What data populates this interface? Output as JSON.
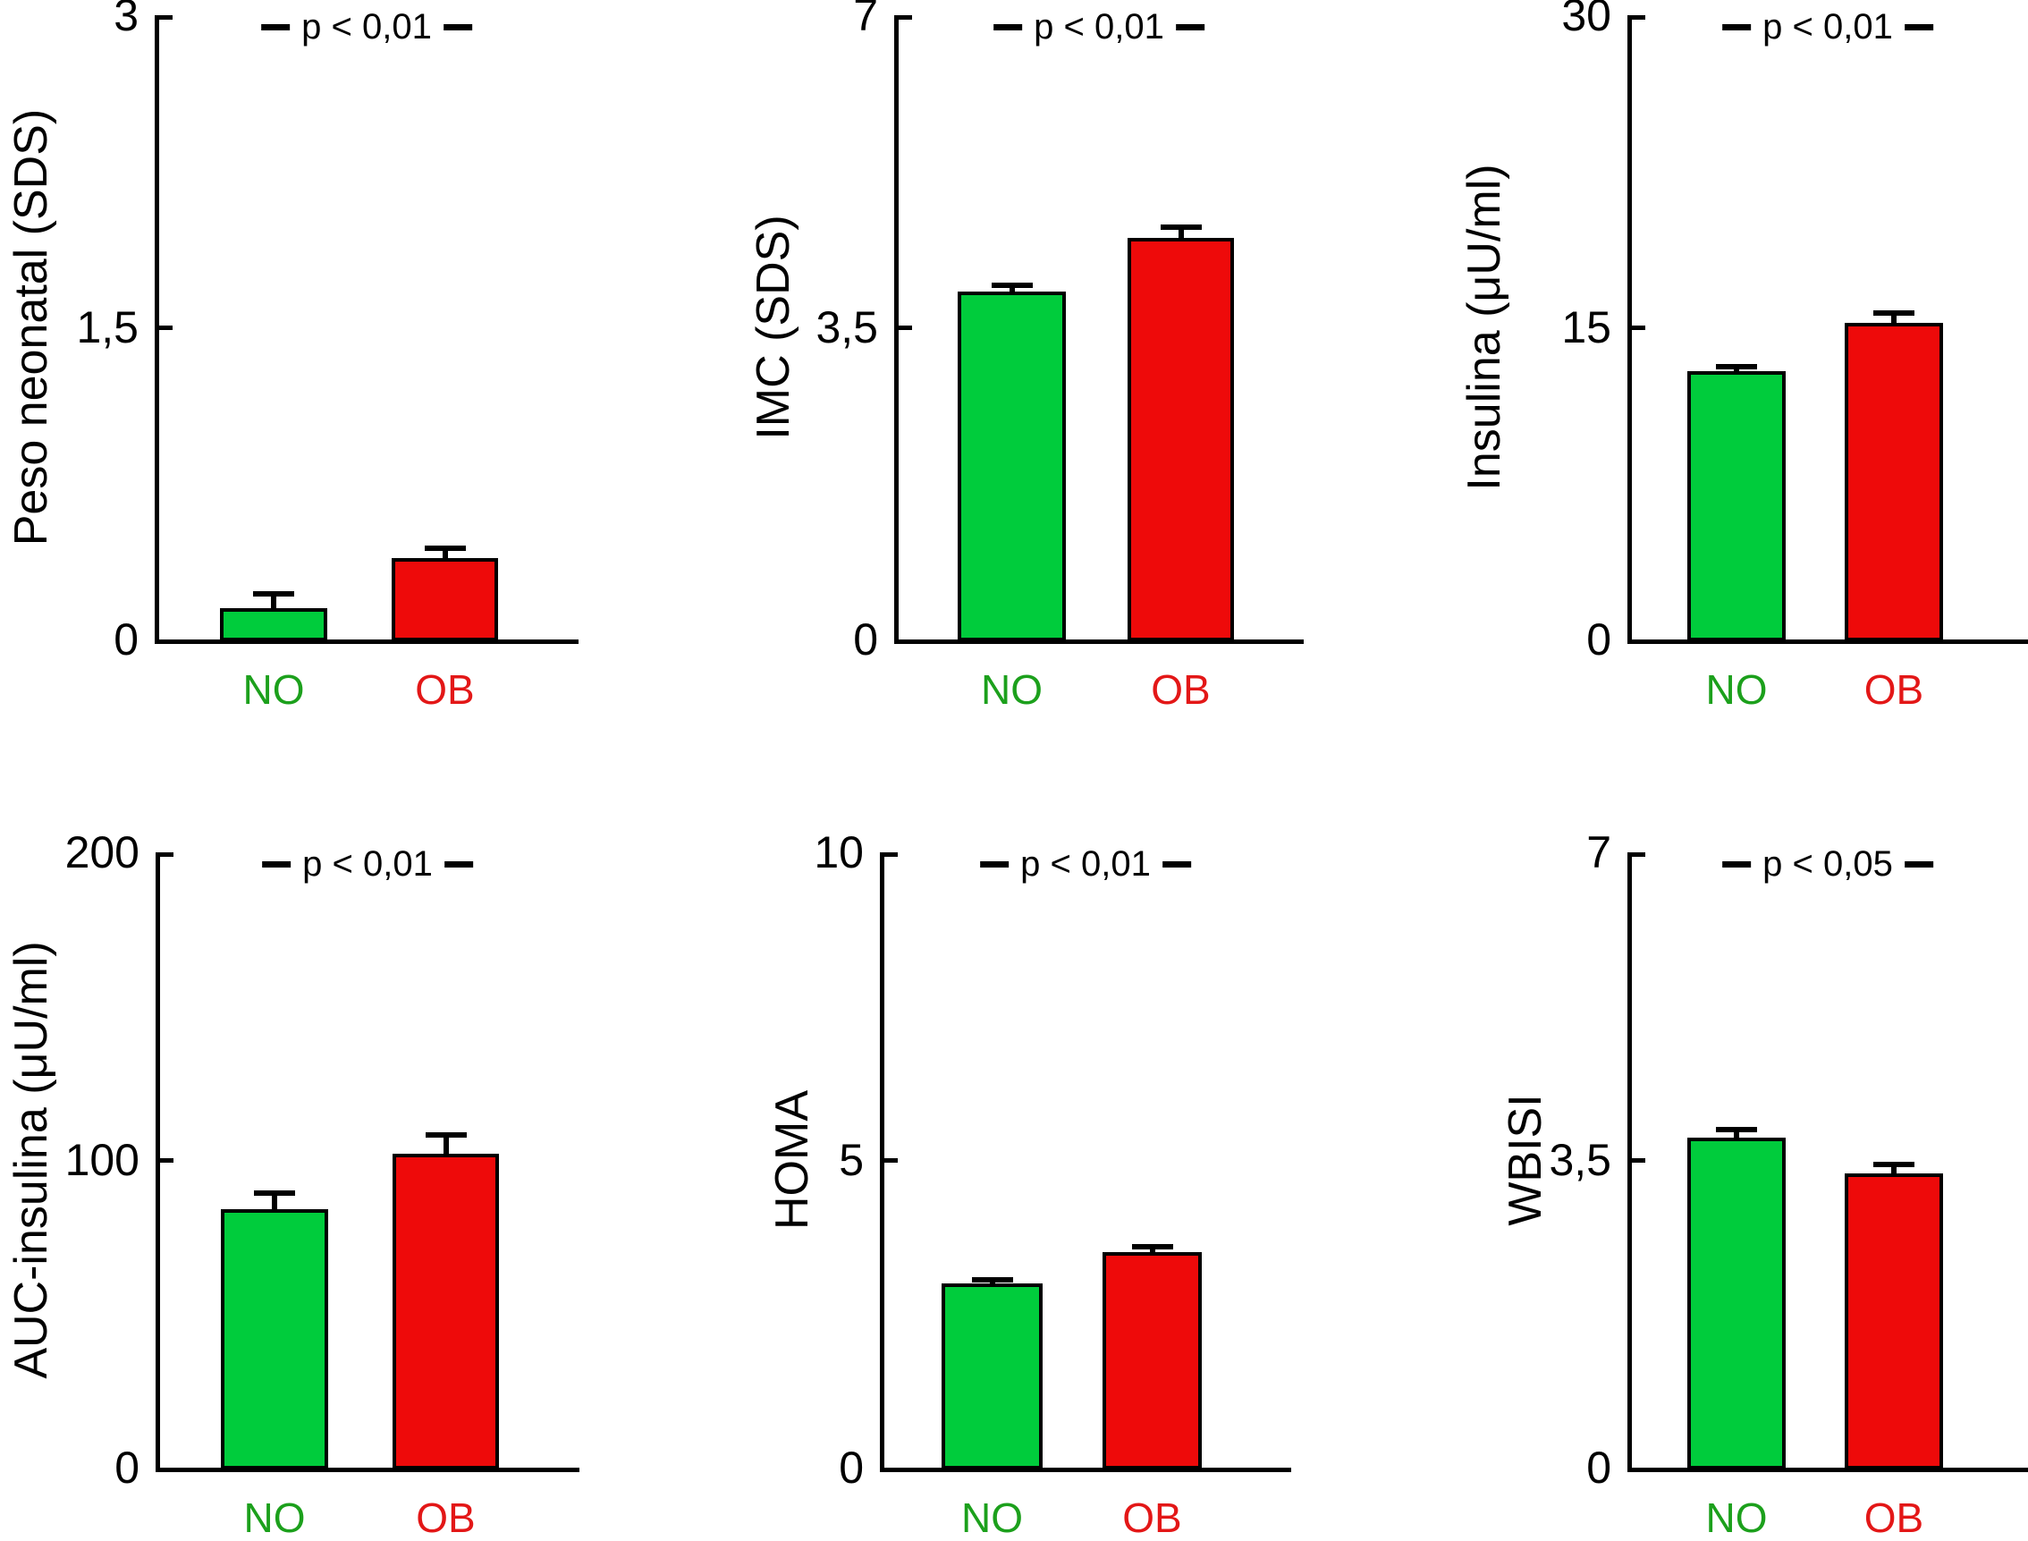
{
  "figure": {
    "background": "#ffffff",
    "groups": [
      "NO",
      "OB"
    ],
    "colors": {
      "bar_no_fill": "#00CC3C",
      "bar_ob_fill": "#EE0A0A",
      "group_no_text": "#1CA01C",
      "group_ob_text": "#E31717",
      "axis": "#000000"
    },
    "error_bars": "upper SEM caps",
    "decimal_separator": "comma"
  },
  "chart_data": [
    {
      "type": "bar",
      "ylabel": "Peso neonatal (SDS)",
      "p_label": "p < 0,01",
      "categories": [
        "NO",
        "OB"
      ],
      "values": [
        0.15,
        0.39
      ],
      "errors": [
        0.08,
        0.06
      ],
      "ylim": [
        0,
        3
      ],
      "yticks": [
        0,
        1.5,
        3
      ],
      "tick_labels": [
        "3",
        "1,5",
        "0"
      ],
      "bar_colors": [
        "#00CC3C",
        "#EE0A0A"
      ],
      "grid": false,
      "legend": "none"
    },
    {
      "type": "bar",
      "ylabel": "IMC (SDS)",
      "p_label": "p < 0,01",
      "categories": [
        "NO",
        "OB"
      ],
      "values": [
        3.9,
        4.5
      ],
      "errors": [
        0.1,
        0.15
      ],
      "ylim": [
        0,
        7
      ],
      "yticks": [
        0,
        3.5,
        7
      ],
      "tick_labels": [
        "7",
        "3,5",
        "0"
      ],
      "bar_colors": [
        "#00CC3C",
        "#EE0A0A"
      ],
      "grid": false,
      "legend": "none"
    },
    {
      "type": "bar",
      "ylabel": "Insulina (μU/ml)",
      "p_label": "p < 0,01",
      "categories": [
        "NO",
        "OB"
      ],
      "values": [
        12.9,
        15.2
      ],
      "errors": [
        0.35,
        0.6
      ],
      "ylim": [
        0,
        30
      ],
      "yticks": [
        0,
        15,
        30
      ],
      "tick_labels": [
        "30",
        "15",
        "0"
      ],
      "bar_colors": [
        "#00CC3C",
        "#EE0A0A"
      ],
      "grid": false,
      "legend": "none"
    },
    {
      "type": "bar",
      "ylabel": "AUC-insulina (μU/ml)",
      "p_label": "p < 0,01",
      "categories": [
        "NO",
        "OB"
      ],
      "values": [
        84,
        102
      ],
      "errors": [
        6,
        7
      ],
      "ylim": [
        0,
        200
      ],
      "yticks": [
        0,
        100,
        200
      ],
      "tick_labels": [
        "200",
        "100",
        "0"
      ],
      "bar_colors": [
        "#00CC3C",
        "#EE0A0A"
      ],
      "grid": false,
      "legend": "none"
    },
    {
      "type": "bar",
      "ylabel": "HOMA",
      "p_label": "p < 0,01",
      "categories": [
        "NO",
        "OB"
      ],
      "values": [
        3.0,
        3.5
      ],
      "errors": [
        0.1,
        0.13
      ],
      "ylim": [
        0,
        10
      ],
      "yticks": [
        0,
        5,
        10
      ],
      "tick_labels": [
        "10",
        "5",
        "0"
      ],
      "bar_colors": [
        "#00CC3C",
        "#EE0A0A"
      ],
      "grid": false,
      "legend": "none"
    },
    {
      "type": "bar",
      "ylabel": "WBISI",
      "p_label": "p < 0,05",
      "categories": [
        "NO",
        "OB"
      ],
      "values": [
        3.75,
        3.35
      ],
      "errors": [
        0.12,
        0.13
      ],
      "ylim": [
        0,
        7
      ],
      "yticks": [
        0,
        3.5,
        7
      ],
      "tick_labels": [
        "7",
        "3,5",
        "0"
      ],
      "bar_colors": [
        "#00CC3C",
        "#EE0A0A"
      ],
      "grid": false,
      "legend": "none"
    }
  ]
}
